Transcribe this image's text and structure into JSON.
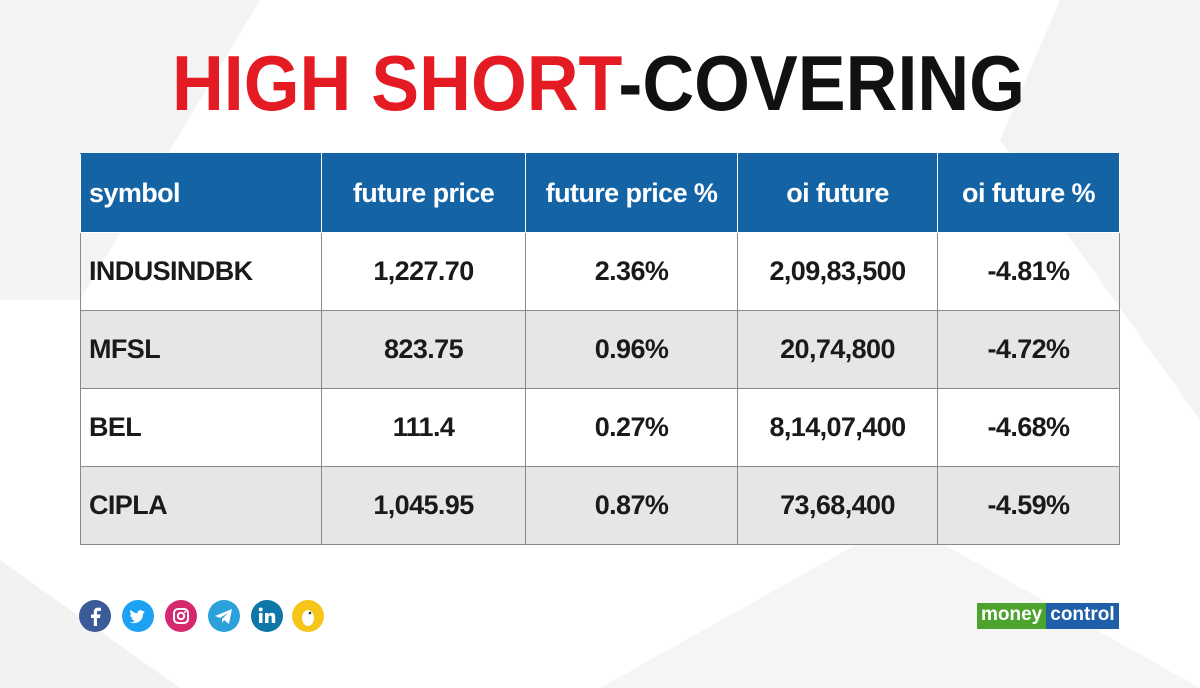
{
  "header": {
    "title_highlight": "HIGH SHORT",
    "title_rest": "-COVERING"
  },
  "table": {
    "columns": [
      "symbol",
      "future price",
      "future price %",
      "oi future",
      "oi future %"
    ],
    "rows": [
      [
        "INDUSINDBK",
        "1,227.70",
        "2.36%",
        "2,09,83,500",
        "-4.81%"
      ],
      [
        "MFSL",
        "823.75",
        "0.96%",
        "20,74,800",
        "-4.72%"
      ],
      [
        "BEL",
        "111.4",
        "0.27%",
        "8,14,07,400",
        "-4.68%"
      ],
      [
        "CIPLA",
        "1,045.95",
        "0.87%",
        "73,68,400",
        "-4.59%"
      ]
    ]
  },
  "footer": {
    "logo_left": "money",
    "logo_right": "control"
  }
}
